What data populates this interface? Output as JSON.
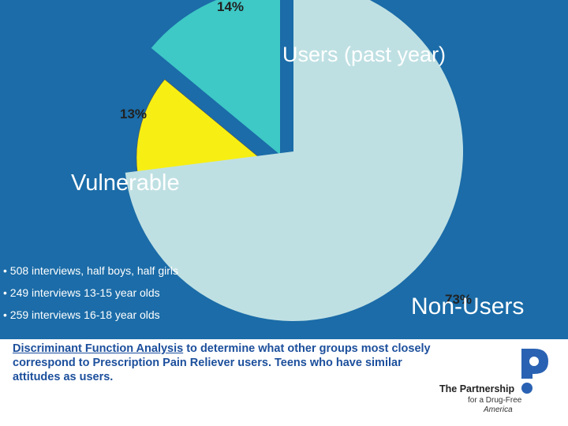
{
  "chart_data": {
    "type": "pie",
    "title": "",
    "slices": [
      {
        "name": "Users (past year)",
        "value": 14,
        "pct_label": "14%",
        "color": "#3ec8c6"
      },
      {
        "name": "Vulnerable",
        "value": 13,
        "pct_label": "13%",
        "color": "#f7ef13"
      },
      {
        "name": "Non-Users",
        "value": 73,
        "pct_label": "73%",
        "color": "#bfe0e3"
      }
    ],
    "exploded": true
  },
  "bullets": [
    "• 508 interviews, half boys, half girls",
    "• 249 interviews 13-15 year olds",
    "• 259 interviews 16-18 year olds"
  ],
  "footer": {
    "link_text": "Discriminant Function Analysis",
    "text": " to determine what other groups most closely correspond to Prescription Pain Reliever users. Teens who have similar attitudes as users."
  },
  "logo": {
    "line1": "The Partnership",
    "line2": "for a Drug-Free",
    "line3": "America"
  },
  "colors": {
    "background": "#1b6ca8",
    "footer_text": "#1c4f9c"
  }
}
